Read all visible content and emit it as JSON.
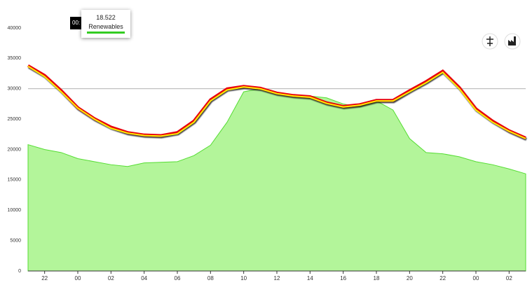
{
  "chart_data": {
    "type": "area-line",
    "x": [
      21,
      22,
      23,
      24,
      25,
      26,
      27,
      28,
      29,
      30,
      31,
      32,
      33,
      34,
      35,
      36,
      37,
      38,
      39,
      40,
      41,
      42,
      43,
      44,
      45,
      46,
      47,
      48,
      49,
      50,
      51
    ],
    "series": [
      {
        "name": "Renewables",
        "color": "#b3f59a",
        "values": [
          20800,
          20000,
          19500,
          18500,
          18000,
          17500,
          17200,
          17800,
          17900,
          18000,
          19000,
          20700,
          24500,
          29500,
          30000,
          29200,
          29000,
          28800,
          28500,
          27500,
          27000,
          28000,
          26500,
          21800,
          19500,
          19300,
          18800,
          18000,
          17500,
          16800,
          16000
        ]
      },
      {
        "color": "#e8000b",
        "values": [
          33800,
          32200,
          29700,
          26900,
          25100,
          23700,
          22800,
          22400,
          22300,
          22800,
          24700,
          28200,
          30000,
          30400,
          30100,
          29300,
          28900,
          28700,
          27700,
          27100,
          27400,
          28100,
          28100,
          29700,
          31200,
          32900,
          30200,
          26700,
          24700,
          23100,
          21900
        ]
      },
      {
        "color": "#ffee00",
        "values": [
          33700,
          32000,
          29500,
          26800,
          25000,
          23500,
          22700,
          22300,
          22200,
          22600,
          24500,
          28000,
          29800,
          30300,
          30000,
          29200,
          28800,
          28600,
          27600,
          27000,
          27300,
          28000,
          28000,
          29500,
          31000,
          32700,
          30000,
          26500,
          24500,
          23000,
          21800
        ]
      }
    ],
    "xlim": [
      21,
      51
    ],
    "xticks": [
      {
        "value": 22,
        "label": "22"
      },
      {
        "value": 24,
        "label": "00"
      },
      {
        "value": 26,
        "label": "02"
      },
      {
        "value": 28,
        "label": "04"
      },
      {
        "value": 30,
        "label": "06"
      },
      {
        "value": 32,
        "label": "08"
      },
      {
        "value": 34,
        "label": "10"
      },
      {
        "value": 36,
        "label": "12"
      },
      {
        "value": 38,
        "label": "14"
      },
      {
        "value": 40,
        "label": "16"
      },
      {
        "value": 42,
        "label": "18"
      },
      {
        "value": 44,
        "label": "20"
      },
      {
        "value": 46,
        "label": "22"
      },
      {
        "value": 48,
        "label": "00"
      },
      {
        "value": 50,
        "label": "02"
      }
    ],
    "ylim": [
      0,
      40000
    ],
    "yticks": [
      0,
      5000,
      10000,
      15000,
      20000,
      25000,
      30000,
      35000,
      40000
    ],
    "grid_values": [
      5000,
      15000,
      30000
    ],
    "tooltip": {
      "time": "00:",
      "value": 18522,
      "value_label": "18.522"
    }
  }
}
